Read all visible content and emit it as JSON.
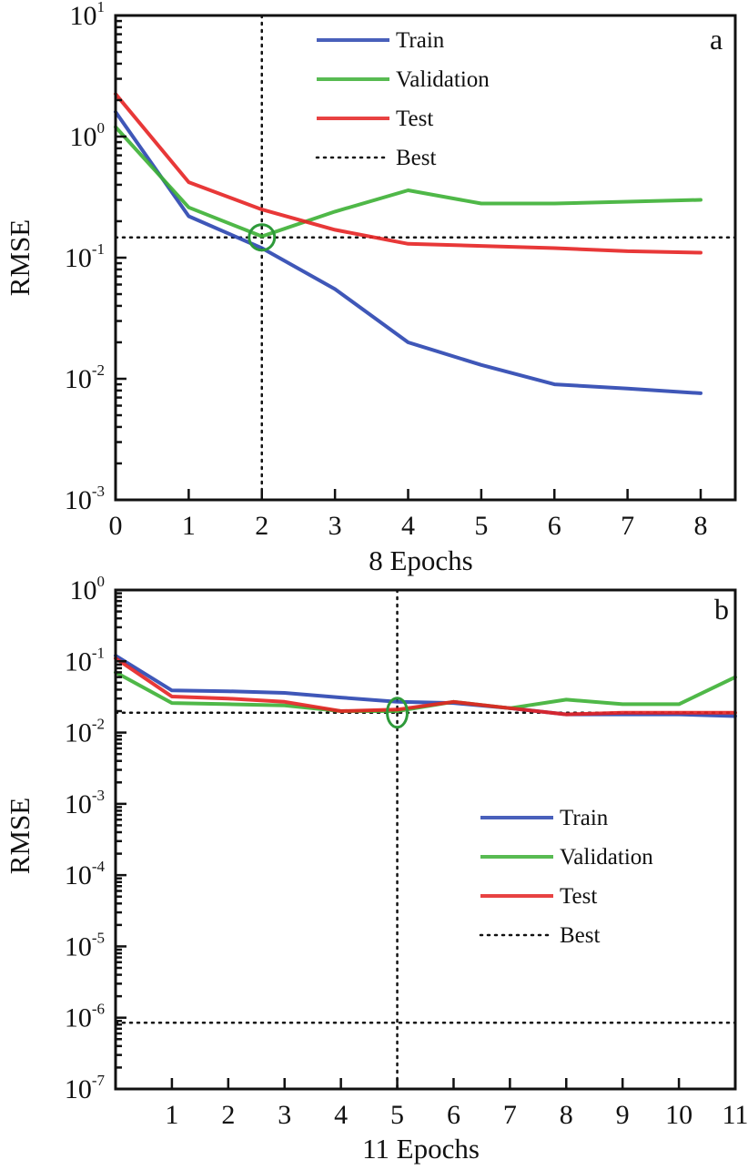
{
  "chart_data": [
    {
      "type": "line",
      "panel_label": "a",
      "title": "",
      "xlabel": "8 Epochs",
      "ylabel": "RMSE",
      "yscale": "log",
      "ylim": [
        0.001,
        10
      ],
      "xlim": [
        0,
        8.4
      ],
      "x": [
        0,
        1,
        2,
        3,
        4,
        5,
        6,
        7,
        8
      ],
      "x_ticks": [
        "0",
        "1",
        "2",
        "3",
        "4",
        "5",
        "6",
        "7",
        "8"
      ],
      "y_ticks": [
        {
          "base": "10",
          "exp": "1"
        },
        {
          "base": "10",
          "exp": "0"
        },
        {
          "base": "10",
          "exp": "-1"
        },
        {
          "base": "10",
          "exp": "-2"
        },
        {
          "base": "10",
          "exp": "-3"
        }
      ],
      "series": [
        {
          "name": "Train",
          "color": "#2a45b0",
          "values": [
            1.6,
            0.22,
            0.12,
            0.055,
            0.02,
            0.013,
            0.009,
            0.0083,
            0.0076
          ]
        },
        {
          "name": "Validation",
          "color": "#3cb034",
          "values": [
            1.2,
            0.26,
            0.15,
            0.24,
            0.36,
            0.28,
            0.28,
            0.29,
            0.3
          ]
        },
        {
          "name": "Test",
          "color": "#e52222",
          "values": [
            2.25,
            0.42,
            0.25,
            0.17,
            0.13,
            0.125,
            0.12,
            0.113,
            0.11
          ]
        }
      ],
      "best": {
        "name": "Best",
        "epoch": 2,
        "value": 0.147,
        "marker_color": "#2e9a3a"
      },
      "legend": {
        "placement": "top-right",
        "entries": [
          "Train",
          "Validation",
          "Test",
          "Best"
        ]
      },
      "grid": false
    },
    {
      "type": "line",
      "panel_label": "b",
      "title": "",
      "xlabel": "11 Epochs",
      "ylabel": "RMSE",
      "yscale": "log",
      "ylim": [
        1e-07,
        1
      ],
      "xlim": [
        0,
        11
      ],
      "x": [
        0,
        1,
        2,
        3,
        4,
        5,
        6,
        7,
        8,
        9,
        10,
        11
      ],
      "x_ticks": [
        "1",
        "2",
        "3",
        "4",
        "5",
        "6",
        "7",
        "8",
        "9",
        "10",
        "11"
      ],
      "y_ticks": [
        {
          "base": "10",
          "exp": "0"
        },
        {
          "base": "10",
          "exp": "-1"
        },
        {
          "base": "10",
          "exp": "-2"
        },
        {
          "base": "10",
          "exp": "-3"
        },
        {
          "base": "10",
          "exp": "-4"
        },
        {
          "base": "10",
          "exp": "-5"
        },
        {
          "base": "10",
          "exp": "-6"
        },
        {
          "base": "10",
          "exp": "-7"
        }
      ],
      "series": [
        {
          "name": "Train",
          "color": "#2a45b0",
          "values": [
            0.12,
            0.039,
            0.038,
            0.036,
            0.031,
            0.027,
            0.026,
            0.022,
            0.018,
            0.018,
            0.018,
            0.017
          ]
        },
        {
          "name": "Validation",
          "color": "#3cb034",
          "values": [
            0.07,
            0.026,
            0.025,
            0.024,
            0.02,
            0.02,
            0.027,
            0.022,
            0.029,
            0.025,
            0.025,
            0.06
          ]
        },
        {
          "name": "Test",
          "color": "#e52222",
          "values": [
            0.11,
            0.032,
            0.03,
            0.027,
            0.02,
            0.021,
            0.027,
            0.022,
            0.018,
            0.019,
            0.019,
            0.019
          ]
        }
      ],
      "best": {
        "name": "Best",
        "epoch": 5,
        "value": 0.019,
        "marker_color": "#2e9a3a"
      },
      "goal": {
        "value": 8.5e-07
      },
      "legend": {
        "placement": "center-right",
        "entries": [
          "Train",
          "Validation",
          "Test",
          "Best"
        ]
      },
      "grid": false
    }
  ]
}
